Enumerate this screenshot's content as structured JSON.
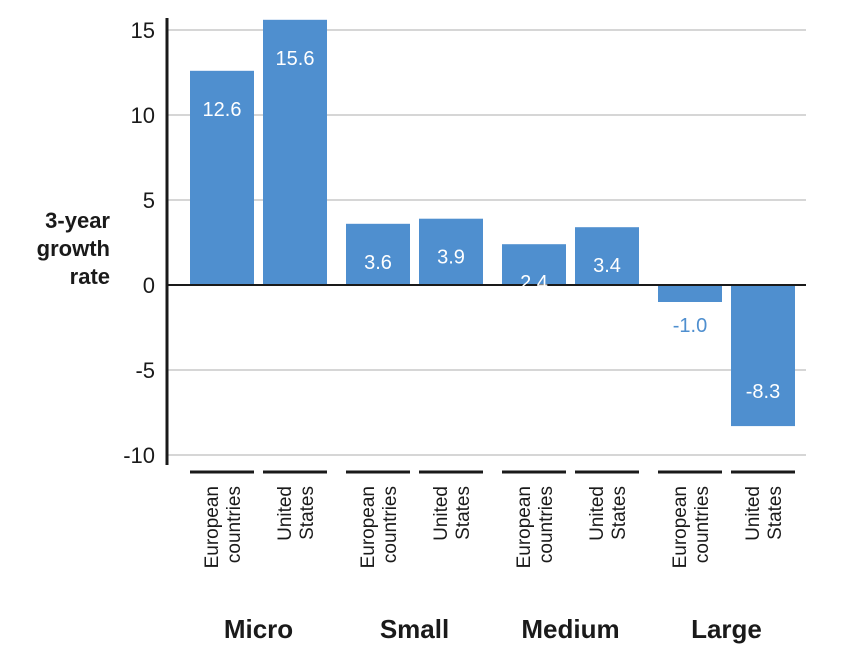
{
  "chart_data": {
    "type": "bar",
    "title": "",
    "ylabel": [
      "3-year",
      "growth",
      "rate"
    ],
    "ylim": [
      -10,
      16
    ],
    "yticks": [
      15,
      10,
      5,
      0,
      -5,
      -10
    ],
    "grid": true,
    "bar_color": "#4f8fcf",
    "label_outside_color": "#4f8fcf",
    "groups": [
      {
        "name": "Micro",
        "bars": [
          {
            "category": [
              "European",
              "countries"
            ],
            "value": 12.6,
            "label": "12.6"
          },
          {
            "category": [
              "United",
              "States"
            ],
            "value": 15.6,
            "label": "15.6"
          }
        ]
      },
      {
        "name": "Small",
        "bars": [
          {
            "category": [
              "European",
              "countries"
            ],
            "value": 3.6,
            "label": "3.6"
          },
          {
            "category": [
              "United",
              "States"
            ],
            "value": 3.9,
            "label": "3.9"
          }
        ]
      },
      {
        "name": "Medium",
        "bars": [
          {
            "category": [
              "European",
              "countries"
            ],
            "value": 2.4,
            "label": "2.4"
          },
          {
            "category": [
              "United",
              "States"
            ],
            "value": 3.4,
            "label": "3.4"
          }
        ]
      },
      {
        "name": "Large",
        "bars": [
          {
            "category": [
              "European",
              "countries"
            ],
            "value": -1.0,
            "label": "-1.0"
          },
          {
            "category": [
              "United",
              "States"
            ],
            "value": -8.3,
            "label": "-8.3"
          }
        ]
      }
    ]
  }
}
